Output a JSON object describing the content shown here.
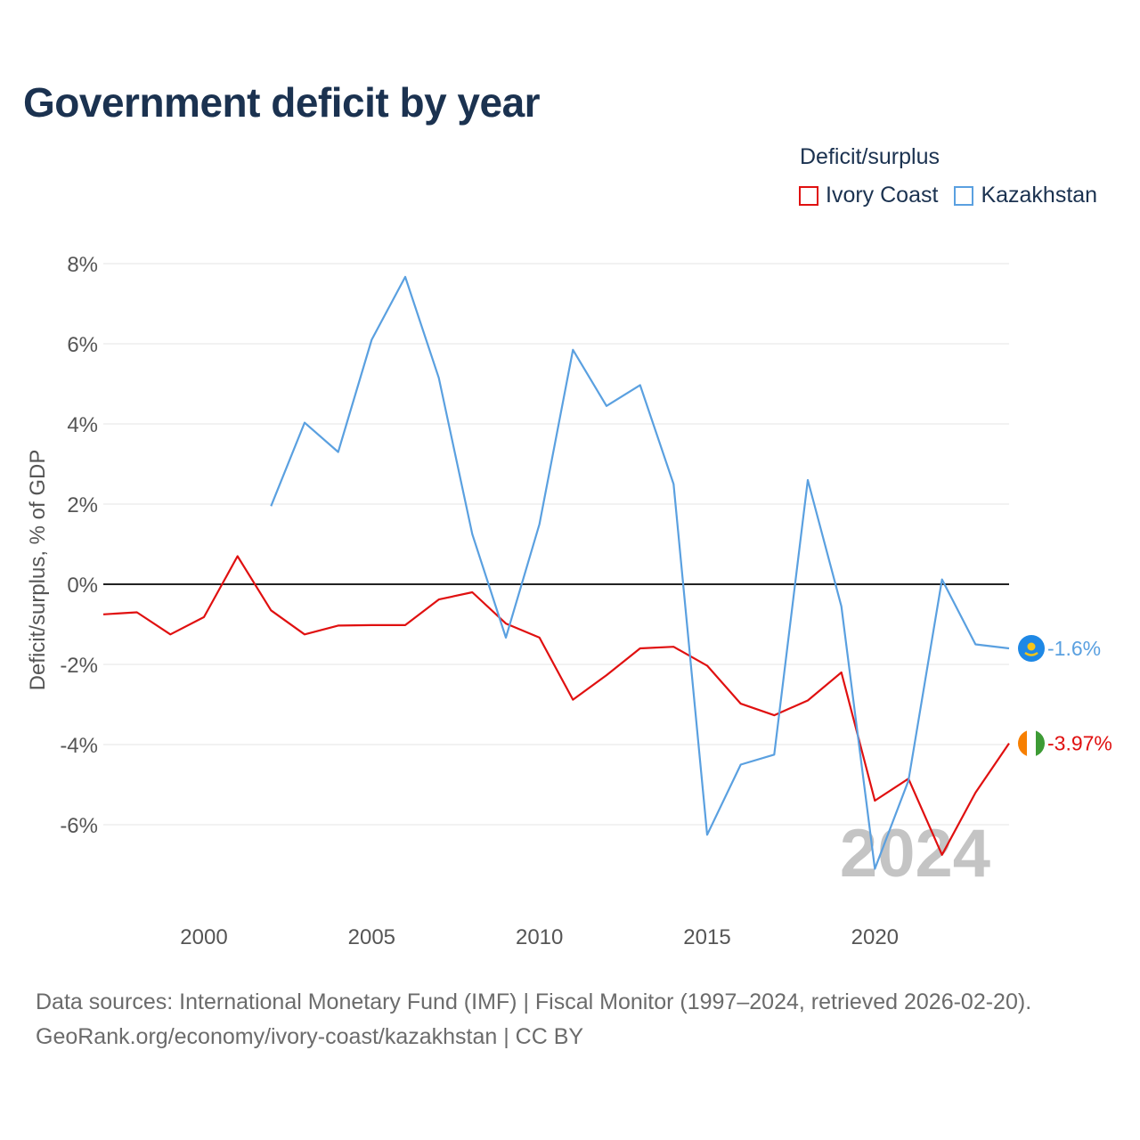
{
  "chart_data": {
    "type": "line",
    "title": "Government deficit by year",
    "ylabel": "Deficit/surplus, % of GDP",
    "xlabel": "",
    "xlim": [
      1997,
      2024
    ],
    "ylim": [
      -8,
      8.5
    ],
    "y_ticks": [
      8,
      6,
      4,
      2,
      0,
      -2,
      -4,
      -6
    ],
    "y_tick_labels": [
      "8%",
      "6%",
      "4%",
      "2%",
      "0%",
      "-2%",
      "-4%",
      "-6%"
    ],
    "x_ticks": [
      2000,
      2005,
      2010,
      2015,
      2020
    ],
    "x_tick_labels": [
      "2000",
      "2005",
      "2010",
      "2015",
      "2020"
    ],
    "legend_title": "Deficit/surplus",
    "legend_position": "top-right",
    "year_watermark": "2024",
    "series": [
      {
        "name": "Ivory Coast",
        "color": "#e01010",
        "end_label": "-3.97%",
        "icon": "ivory-coast-flag-icon",
        "x": [
          1997,
          1998,
          1999,
          2000,
          2001,
          2002,
          2003,
          2004,
          2005,
          2006,
          2007,
          2008,
          2009,
          2010,
          2011,
          2012,
          2013,
          2014,
          2015,
          2016,
          2017,
          2018,
          2019,
          2020,
          2021,
          2022,
          2023,
          2024
        ],
        "values": [
          -0.75,
          -0.7,
          -1.25,
          -0.82,
          0.7,
          -0.65,
          -1.25,
          -1.03,
          -1.02,
          -1.02,
          -0.38,
          -0.2,
          -0.98,
          -1.33,
          -2.88,
          -2.27,
          -1.6,
          -1.56,
          -2.03,
          -2.98,
          -3.27,
          -2.9,
          -2.2,
          -5.4,
          -4.85,
          -6.75,
          -5.2,
          -3.97
        ]
      },
      {
        "name": "Kazakhstan",
        "color": "#5aa0e0",
        "end_label": "-1.6%",
        "icon": "kazakhstan-flag-icon",
        "x": [
          2002,
          2003,
          2004,
          2005,
          2006,
          2007,
          2008,
          2009,
          2010,
          2011,
          2012,
          2013,
          2014,
          2015,
          2016,
          2017,
          2018,
          2019,
          2020,
          2021,
          2022,
          2023,
          2024
        ],
        "values": [
          1.95,
          4.03,
          3.3,
          6.1,
          7.67,
          5.15,
          1.25,
          -1.33,
          1.5,
          5.85,
          4.45,
          4.97,
          2.5,
          -6.25,
          -4.5,
          -4.25,
          2.6,
          -0.55,
          -7.1,
          -4.9,
          0.12,
          -1.5,
          -1.6
        ]
      }
    ]
  },
  "source": {
    "line1": "Data sources: International Monetary Fund (IMF) | Fiscal Monitor (1997–2024, retrieved 2026-02-20).",
    "line2": "GeoRank.org/economy/ivory-coast/kazakhstan | CC BY"
  }
}
